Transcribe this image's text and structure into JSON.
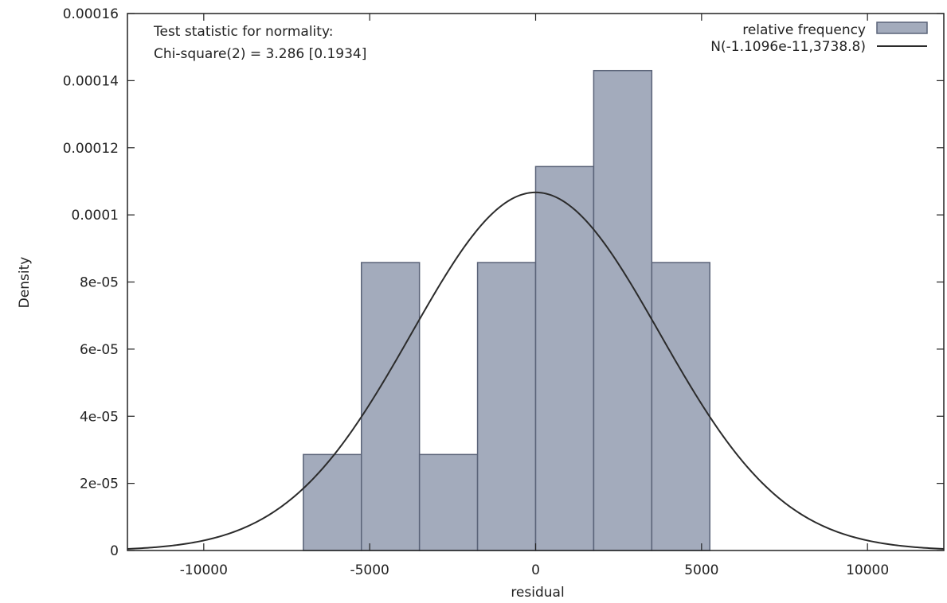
{
  "chart_data": {
    "type": "bar",
    "xlabel": "residual",
    "ylabel": "Density",
    "xlim": [
      -12300,
      12300
    ],
    "ylim": [
      0,
      0.00016
    ],
    "x_ticks": [
      {
        "value": -10000,
        "label": "-10000"
      },
      {
        "value": -5000,
        "label": "-5000"
      },
      {
        "value": 0,
        "label": "0"
      },
      {
        "value": 5000,
        "label": "5000"
      },
      {
        "value": 10000,
        "label": "10000"
      }
    ],
    "y_ticks": [
      {
        "value": 0,
        "label": "0"
      },
      {
        "value": 2e-05,
        "label": "2e-05"
      },
      {
        "value": 4e-05,
        "label": "4e-05"
      },
      {
        "value": 6e-05,
        "label": "6e-05"
      },
      {
        "value": 8e-05,
        "label": "8e-05"
      },
      {
        "value": 0.0001,
        "label": "0.0001"
      },
      {
        "value": 0.00012,
        "label": "0.00012"
      },
      {
        "value": 0.00014,
        "label": "0.00014"
      },
      {
        "value": 0.00016,
        "label": "0.00016"
      }
    ],
    "bins": [
      {
        "x0": -7000,
        "x1": -5250,
        "density": 2.86e-05
      },
      {
        "x0": -5250,
        "x1": -3500,
        "density": 8.58e-05
      },
      {
        "x0": -3500,
        "x1": -1750,
        "density": 2.86e-05
      },
      {
        "x0": -1750,
        "x1": 0,
        "density": 8.58e-05
      },
      {
        "x0": 0,
        "x1": 1750,
        "density": 0.0001144
      },
      {
        "x0": 1750,
        "x1": 3500,
        "density": 0.000143
      },
      {
        "x0": 3500,
        "x1": 5250,
        "density": 8.58e-05
      }
    ],
    "normal_curve": {
      "mean": -1.1096e-11,
      "sd": 3738.8
    },
    "legend": [
      {
        "label": "relative frequency",
        "kind": "bar"
      },
      {
        "label": "N(-1.1096e-11,3738.8)",
        "kind": "line"
      }
    ],
    "legend_position": "top-right",
    "annotation": [
      "Test statistic for normality:",
      "Chi-square(2) = 3.286 [0.1934]"
    ],
    "colors": {
      "bar_fill": "#a3abbc",
      "bar_stroke": "#5a6378",
      "curve": "#2b2b2b",
      "axis": "#222222"
    },
    "grid": false
  }
}
